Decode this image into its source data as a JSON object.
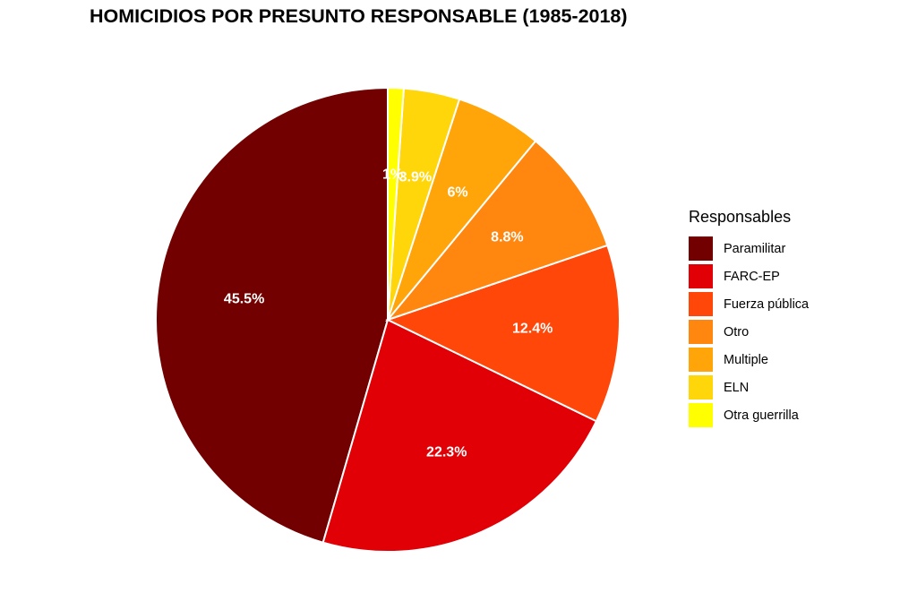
{
  "chart_data": {
    "type": "pie",
    "title": "HOMICIDIOS POR PRESUNTO RESPONSABLE (1985-2018)",
    "legend": {
      "title": "Responsables",
      "position": "right"
    },
    "slices": [
      {
        "name": "Paramilitar",
        "value": 45.5,
        "label": "45.5%",
        "color": "#730000"
      },
      {
        "name": "FARC-EP",
        "value": 22.3,
        "label": "22.3%",
        "color": "#E00006"
      },
      {
        "name": "Fuerza pública",
        "value": 12.4,
        "label": "12.4%",
        "color": "#FF470A"
      },
      {
        "name": "Otro",
        "value": 8.8,
        "label": "8.8%",
        "color": "#FF860F"
      },
      {
        "name": "Multiple",
        "value": 6.0,
        "label": "6%",
        "color": "#FFA50A"
      },
      {
        "name": "ELN",
        "value": 3.9,
        "label": "3.9%",
        "color": "#FFD60A"
      },
      {
        "name": "Otra guerrilla",
        "value": 1.1,
        "label": "1%",
        "color": "#FFFF00"
      }
    ]
  }
}
